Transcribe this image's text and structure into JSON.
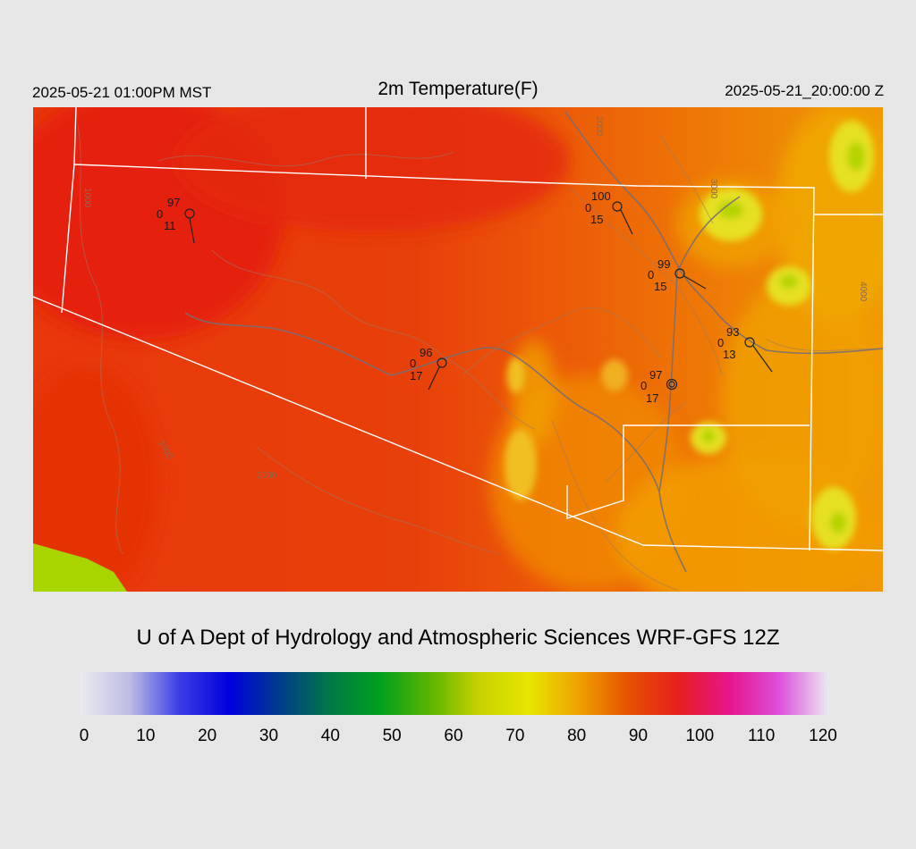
{
  "header": {
    "local_time": "2025-05-21 01:00PM MST",
    "title": "2m Temperature(F)",
    "utc_time": "2025-05-21_20:00:00 Z"
  },
  "credit": "U of A Dept of Hydrology and Atmospheric Sciences WRF-GFS 12Z",
  "colorbar": {
    "ticks": [
      "0",
      "10",
      "20",
      "30",
      "40",
      "50",
      "60",
      "70",
      "80",
      "90",
      "100",
      "110",
      "120"
    ],
    "min": 0,
    "max": 120,
    "colors": [
      "#ebebf0",
      "#bdbde6",
      "#3c3ce6",
      "#0000dc",
      "#003c8c",
      "#007846",
      "#00a01e",
      "#5ab400",
      "#c8d200",
      "#e6e600",
      "#f0a000",
      "#e65000",
      "#e61e1e",
      "#e6148c",
      "#dc50dc",
      "#ebebf0"
    ]
  },
  "contour_labels": [
    "1000",
    "2000",
    "3000",
    "4000"
  ],
  "stations": [
    {
      "id": "s1",
      "temp": "97",
      "dew": "0",
      "wind": "11"
    },
    {
      "id": "s2",
      "temp": "100",
      "dew": "0",
      "wind": "15"
    },
    {
      "id": "s3",
      "temp": "99",
      "dew": "0",
      "wind": "15"
    },
    {
      "id": "s4",
      "temp": "93",
      "dew": "0",
      "wind": "13"
    },
    {
      "id": "s5",
      "temp": "96",
      "dew": "0",
      "wind": "17"
    },
    {
      "id": "s6",
      "temp": "97",
      "dew": "0",
      "wind": "17"
    }
  ]
}
